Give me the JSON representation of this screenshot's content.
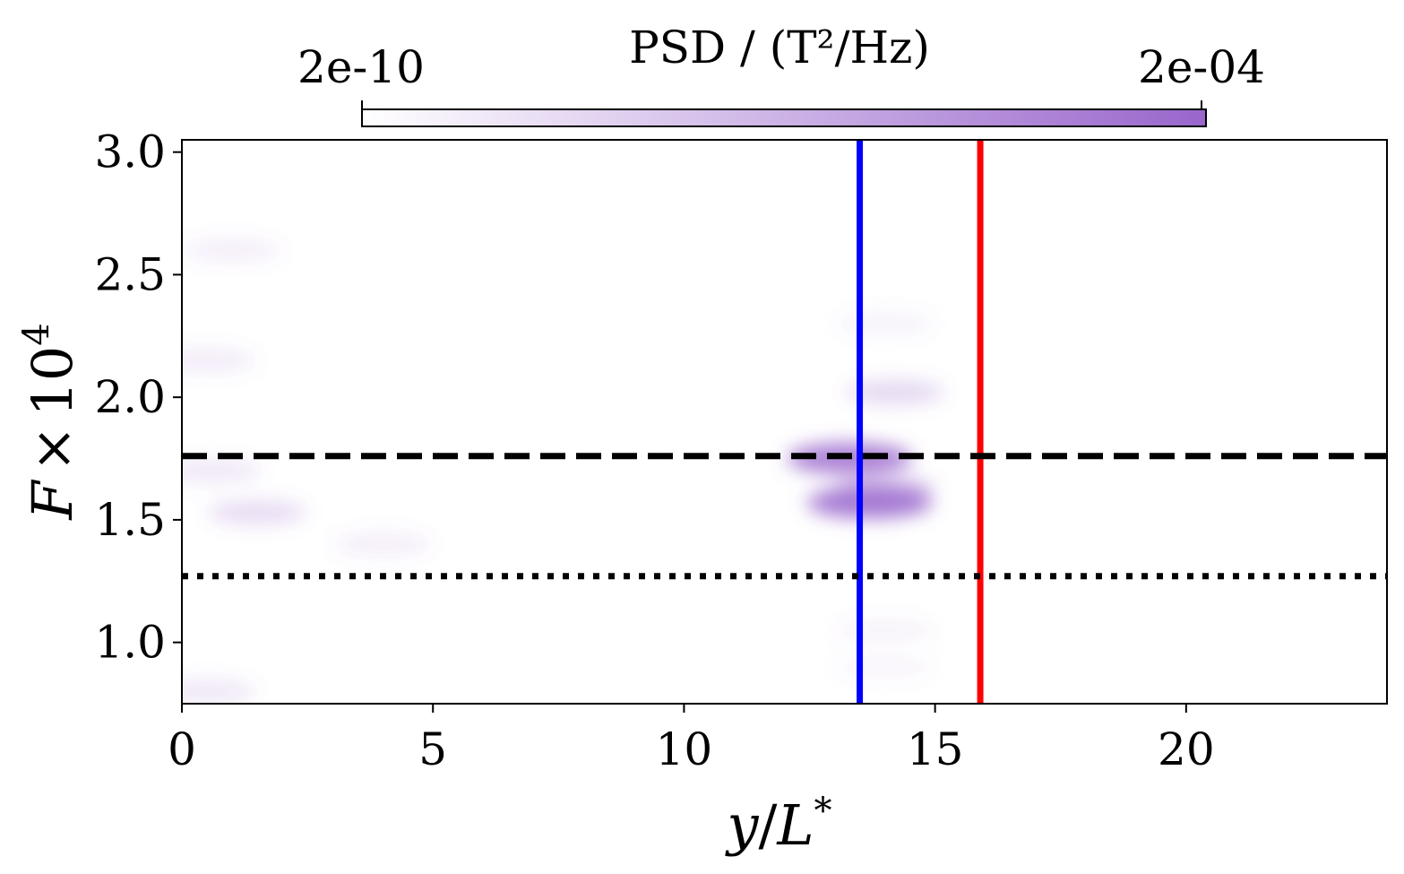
{
  "chart_data": {
    "type": "heatmap",
    "title": "",
    "xlabel": "y/L*",
    "ylabel": "F × 10^4",
    "xlabel_parts": {
      "var": "y",
      "slash": "/",
      "L": "L",
      "star": "*"
    },
    "ylabel_parts": {
      "F": "F",
      "times": "×",
      "base": "10",
      "exp": "4"
    },
    "xlim": [
      0,
      24
    ],
    "ylim": [
      0.75,
      3.05
    ],
    "x_ticks": [
      0,
      5,
      10,
      15,
      20
    ],
    "x_tick_labels": [
      "0",
      "5",
      "10",
      "15",
      "20"
    ],
    "y_ticks": [
      1.0,
      1.5,
      2.0,
      2.5,
      3.0
    ],
    "y_tick_labels": [
      "1.0",
      "1.5",
      "2.0",
      "2.5",
      "3.0"
    ],
    "colorbar": {
      "label": "PSD / (T²/Hz)",
      "min_label": "2e-10",
      "max_label": "2e-04",
      "color_low": "#ffffff",
      "color_high": "#9966cc",
      "placement": "top"
    },
    "reference_lines": [
      {
        "orientation": "vertical",
        "x": 13.5,
        "color": "#0000ff",
        "style": "solid"
      },
      {
        "orientation": "vertical",
        "x": 15.9,
        "color": "#ff0000",
        "style": "solid"
      },
      {
        "orientation": "horizontal",
        "y": 1.76,
        "color": "#000000",
        "style": "dashed"
      },
      {
        "orientation": "horizontal",
        "y": 1.27,
        "color": "#000000",
        "style": "dotted"
      }
    ],
    "intensity_features": [
      {
        "x": 13.7,
        "y": 1.57,
        "intensity": 0.85
      },
      {
        "x": 13.3,
        "y": 1.75,
        "intensity": 0.8
      },
      {
        "x": 14.2,
        "y": 2.02,
        "intensity": 0.25
      },
      {
        "x": 14.0,
        "y": 1.63,
        "intensity": 0.35
      },
      {
        "x": 1.5,
        "y": 1.53,
        "intensity": 0.22
      },
      {
        "x": 0.6,
        "y": 1.7,
        "intensity": 0.15
      },
      {
        "x": 0.5,
        "y": 2.15,
        "intensity": 0.12
      },
      {
        "x": 1.0,
        "y": 2.6,
        "intensity": 0.1
      },
      {
        "x": 0.5,
        "y": 0.8,
        "intensity": 0.15
      },
      {
        "x": 4.0,
        "y": 1.4,
        "intensity": 0.1
      },
      {
        "x": 14.0,
        "y": 2.3,
        "intensity": 0.08
      },
      {
        "x": 14.0,
        "y": 1.05,
        "intensity": 0.07
      },
      {
        "x": 14.0,
        "y": 0.9,
        "intensity": 0.06
      }
    ]
  }
}
